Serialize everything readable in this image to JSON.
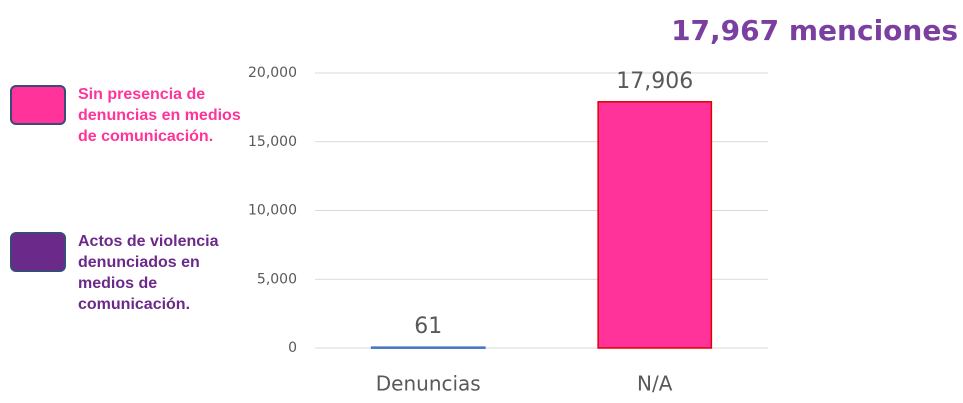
{
  "chart_data": {
    "type": "bar",
    "title": "17,967 menciones",
    "categories": [
      "Denuncias",
      "N/A"
    ],
    "values": [
      61,
      17906
    ],
    "value_labels": [
      "61",
      "17,906"
    ],
    "colors": [
      "#4472c4",
      "#ff3399"
    ],
    "edge_colors": [
      "#4472c4",
      "#e00000"
    ],
    "ylim": [
      0,
      20000
    ],
    "yticks": [
      0,
      {
        "value": 5000,
        "label": "5,000"
      },
      {
        "value": 10000,
        "label": "10,000"
      },
      {
        "value": 15000,
        "label": "15,000"
      },
      {
        "value": 20000,
        "label": "20,000"
      }
    ],
    "grid": true,
    "legend": [
      {
        "label": "Sin presencia de denuncias en medios de comunicación.",
        "color": "#ff3399"
      },
      {
        "label": "Actos de violencia denunciados en medios de comunicación.",
        "color": "#6b2a8a"
      }
    ]
  }
}
